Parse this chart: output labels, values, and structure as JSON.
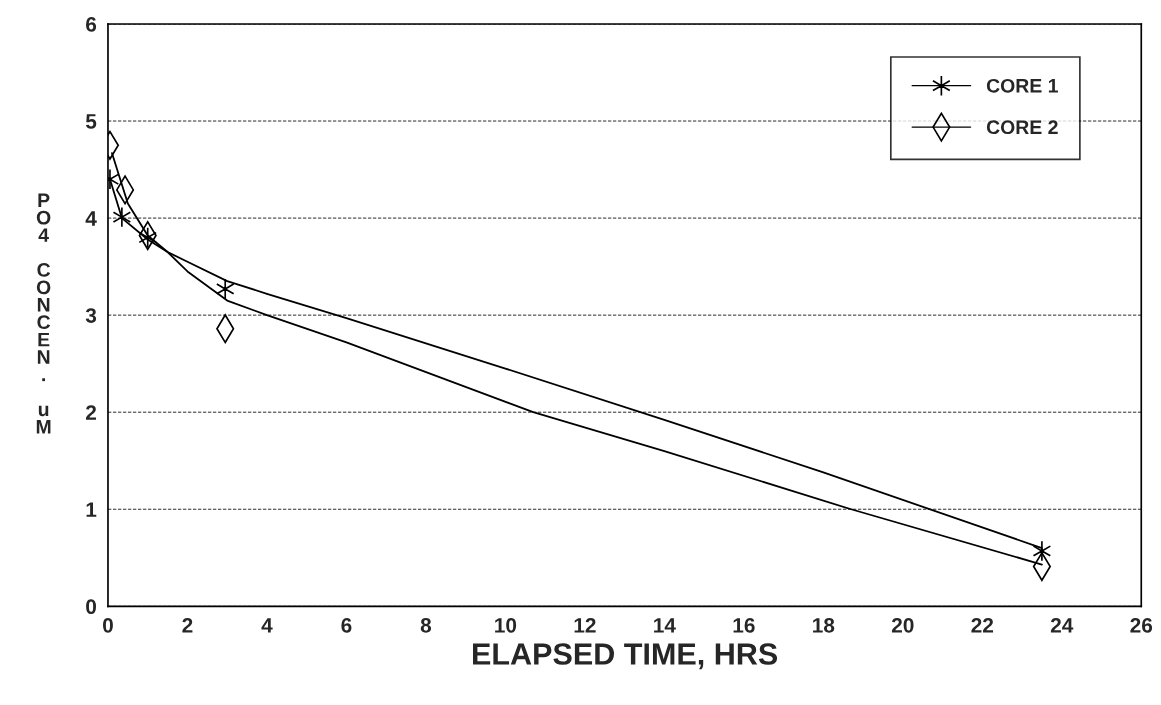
{
  "chart_data": {
    "type": "scatter",
    "xlabel": "ELAPSED TIME, HRS",
    "ylabel": "PO4 CONCEN. uM",
    "xlim": [
      0,
      26
    ],
    "xticks": [
      0,
      2,
      4,
      6,
      8,
      10,
      12,
      14,
      16,
      18,
      20,
      22,
      24,
      26
    ],
    "ylim": [
      0,
      6
    ],
    "yticks": [
      0,
      1,
      2,
      3,
      4,
      5,
      6
    ],
    "grid": "y",
    "legend": "top right",
    "series": [
      {
        "name": "CORE 1",
        "marker": "cross",
        "color": "#000000",
        "x": [
          0.05,
          0.35,
          1.0,
          2.95,
          23.5
        ],
        "values": [
          4.4,
          4.01,
          3.8,
          3.27,
          0.57
        ]
      },
      {
        "name": "CORE 2",
        "marker": "diamond",
        "color": "#000000",
        "x": [
          0.05,
          0.43,
          1.0,
          2.95,
          23.5
        ],
        "values": [
          4.75,
          4.29,
          3.82,
          2.86,
          0.41
        ]
      },
      {
        "type": "line",
        "marker": "none",
        "color": "#000000",
        "x": [
          0.05,
          0.35,
          1,
          1.5,
          2,
          3,
          4,
          6,
          10,
          14,
          18,
          23.5
        ],
        "values": [
          4.4,
          4.0,
          3.78,
          3.65,
          3.55,
          3.35,
          3.22,
          2.97,
          2.45,
          1.92,
          1.38,
          0.6
        ]
      },
      {
        "type": "line",
        "marker": "none",
        "color": "#000000",
        "x": [
          0.1,
          0.5,
          1,
          1.5,
          2,
          3,
          4,
          6,
          10.7,
          14,
          18.7,
          23.5
        ],
        "values": [
          4.67,
          4.15,
          3.82,
          3.65,
          3.45,
          3.15,
          3.0,
          2.72,
          2.0,
          1.6,
          1.0,
          0.43
        ]
      }
    ]
  }
}
